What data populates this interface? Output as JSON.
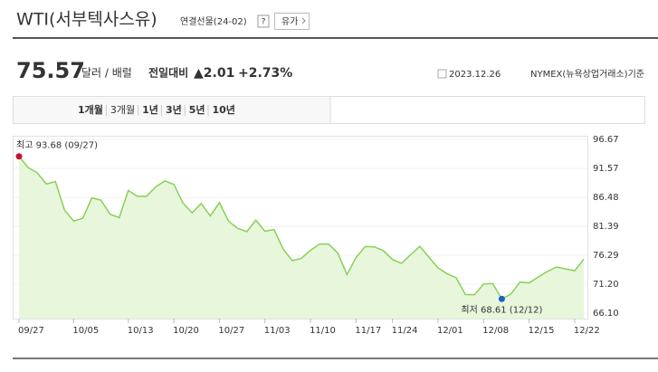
{
  "header": {
    "title": "WTI(서부텍사스유)",
    "subtitle": "연결선물(24-02)",
    "help": "?",
    "button": "유가"
  },
  "quote": {
    "price": "75.57",
    "unit": "달러 / 배럴",
    "change_label": "전일대비",
    "change": "▲2.01",
    "change_pct": "+2.73%",
    "date": "2023.12.26",
    "source": "NYMEX(뉴욕상업거래소)기준"
  },
  "tabs": [
    "1개월",
    "3개월",
    "1년",
    "3년",
    "5년",
    "10년"
  ],
  "selected_tab": 1,
  "chart_data": {
    "type": "line",
    "categories": [
      "09/27",
      null,
      null,
      null,
      null,
      null,
      "10/05",
      null,
      null,
      null,
      null,
      null,
      "10/13",
      null,
      null,
      null,
      null,
      "10/20",
      null,
      null,
      null,
      null,
      "10/27",
      null,
      null,
      null,
      null,
      "11/03",
      null,
      null,
      null,
      null,
      "11/10",
      null,
      null,
      null,
      null,
      "11/17",
      null,
      null,
      null,
      "11/24",
      null,
      null,
      null,
      null,
      "12/01",
      null,
      null,
      null,
      null,
      "12/08",
      null,
      null,
      null,
      null,
      "12/15",
      null,
      null,
      null,
      null,
      "12/22",
      null
    ],
    "values": [
      93.68,
      91.71,
      90.79,
      88.82,
      89.23,
      84.22,
      82.31,
      82.79,
      86.38,
      85.97,
      83.49,
      82.91,
      87.69,
      86.66,
      86.66,
      88.32,
      89.37,
      88.75,
      85.49,
      83.74,
      85.39,
      83.21,
      85.54,
      82.31,
      81.02,
      80.44,
      82.46,
      80.51,
      80.82,
      77.37,
      75.33,
      75.74,
      77.17,
      78.26,
      78.26,
      76.66,
      72.9,
      75.89,
      77.83,
      77.77,
      77.1,
      75.54,
      74.86,
      76.41,
      77.86,
      75.96,
      74.07,
      73.04,
      72.32,
      69.38,
      69.34,
      71.23,
      71.32,
      68.61,
      69.47,
      71.58,
      71.43,
      72.47,
      73.44,
      74.22,
      73.89,
      73.56,
      75.57
    ],
    "color": "#86d155",
    "fill": "#e8f6dc",
    "ylim": [
      65.15,
      97.3
    ],
    "yticks": [
      96.67,
      91.57,
      86.48,
      81.39,
      76.29,
      {
        "value": 71.2,
        "label": "71.20"
      },
      {
        "value": 66.1,
        "label": "66.10"
      }
    ],
    "grid": true,
    "annotations": [
      {
        "text": "최고 93.68 (09/27)",
        "color": "#c8102e",
        "at": "max"
      },
      {
        "text": "최저 68.61 (12/12)",
        "color": "#1a64c8",
        "at": "min"
      }
    ]
  }
}
